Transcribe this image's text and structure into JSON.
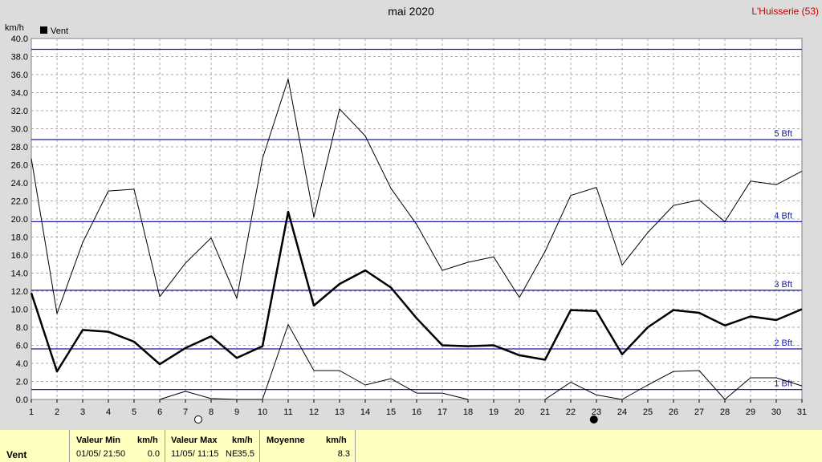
{
  "header": {
    "title": "mai 2020",
    "station": "L'Huisserie (53)"
  },
  "chart_data": {
    "type": "line",
    "ylabel": "km/h",
    "ylim": [
      0,
      40
    ],
    "yticks": [
      "0.0",
      "2.0",
      "4.0",
      "6.0",
      "8.0",
      "10.0",
      "12.0",
      "14.0",
      "16.0",
      "18.0",
      "20.0",
      "22.0",
      "24.0",
      "26.0",
      "28.0",
      "30.0",
      "32.0",
      "34.0",
      "36.0",
      "38.0",
      "40.0"
    ],
    "x": [
      1,
      2,
      3,
      4,
      5,
      6,
      7,
      8,
      9,
      10,
      11,
      12,
      13,
      14,
      15,
      16,
      17,
      18,
      19,
      20,
      21,
      22,
      23,
      24,
      25,
      26,
      27,
      28,
      29,
      30,
      31
    ],
    "legend": {
      "label": "Vent",
      "position": "top-left"
    },
    "grid": true,
    "series": [
      {
        "name": "Vent",
        "color": "#000000",
        "width": 2.5,
        "values": [
          11.8,
          3.1,
          7.7,
          7.5,
          6.4,
          3.9,
          5.7,
          7.0,
          4.6,
          5.9,
          20.8,
          10.4,
          12.8,
          14.3,
          12.4,
          9.0,
          6.0,
          5.9,
          6.0,
          4.9,
          4.4,
          9.9,
          9.8,
          5.0,
          8.0,
          9.9,
          9.6,
          8.2,
          9.2,
          8.8,
          10.0
        ]
      },
      {
        "color": "#000000",
        "width": 1,
        "values": [
          26.7,
          9.5,
          17.4,
          23.1,
          23.3,
          11.4,
          15.1,
          17.9,
          11.2,
          26.7,
          35.5,
          20.2,
          32.2,
          29.2,
          23.4,
          19.4,
          14.3,
          15.2,
          15.8,
          11.3,
          16.4,
          22.6,
          23.5,
          14.9,
          18.5,
          21.5,
          22.1,
          19.7,
          24.2,
          23.8,
          25.3
        ]
      },
      {
        "color": "#000000",
        "width": 1,
        "values": [
          null,
          null,
          null,
          null,
          null,
          0.0,
          0.9,
          0.1,
          0.0,
          0.0,
          8.3,
          3.2,
          3.2,
          1.6,
          2.3,
          0.7,
          0.7,
          0.0,
          null,
          null,
          0.0,
          1.9,
          0.5,
          0.0,
          1.6,
          3.1,
          3.2,
          0.0,
          2.4,
          2.4,
          1.5
        ]
      }
    ],
    "reference_lines": [
      {
        "value": 1.1,
        "label": "1 Bft"
      },
      {
        "value": 5.6,
        "label": "2 Bft"
      },
      {
        "value": 12.1,
        "label": "3 Bft"
      },
      {
        "value": 19.7,
        "label": "4 Bft"
      },
      {
        "value": 28.8,
        "label": "5 Bft"
      },
      {
        "value": 38.8,
        "label": ""
      }
    ],
    "moon_phases": [
      {
        "day": 7.5,
        "phase": "full"
      },
      {
        "day": 22.9,
        "phase": "new"
      }
    ]
  },
  "summary": {
    "row_label": "Vent",
    "min": {
      "header": "Valeur Min",
      "unit": "km/h",
      "date": "01/05/  21:50",
      "value": "0.0"
    },
    "max": {
      "header": "Valeur Max",
      "unit": "km/h",
      "date": "11/05/  11:15",
      "dir": "NE",
      "value": "35.5"
    },
    "mean": {
      "header": "Moyenne",
      "unit": "km/h",
      "value": "8.3"
    }
  }
}
